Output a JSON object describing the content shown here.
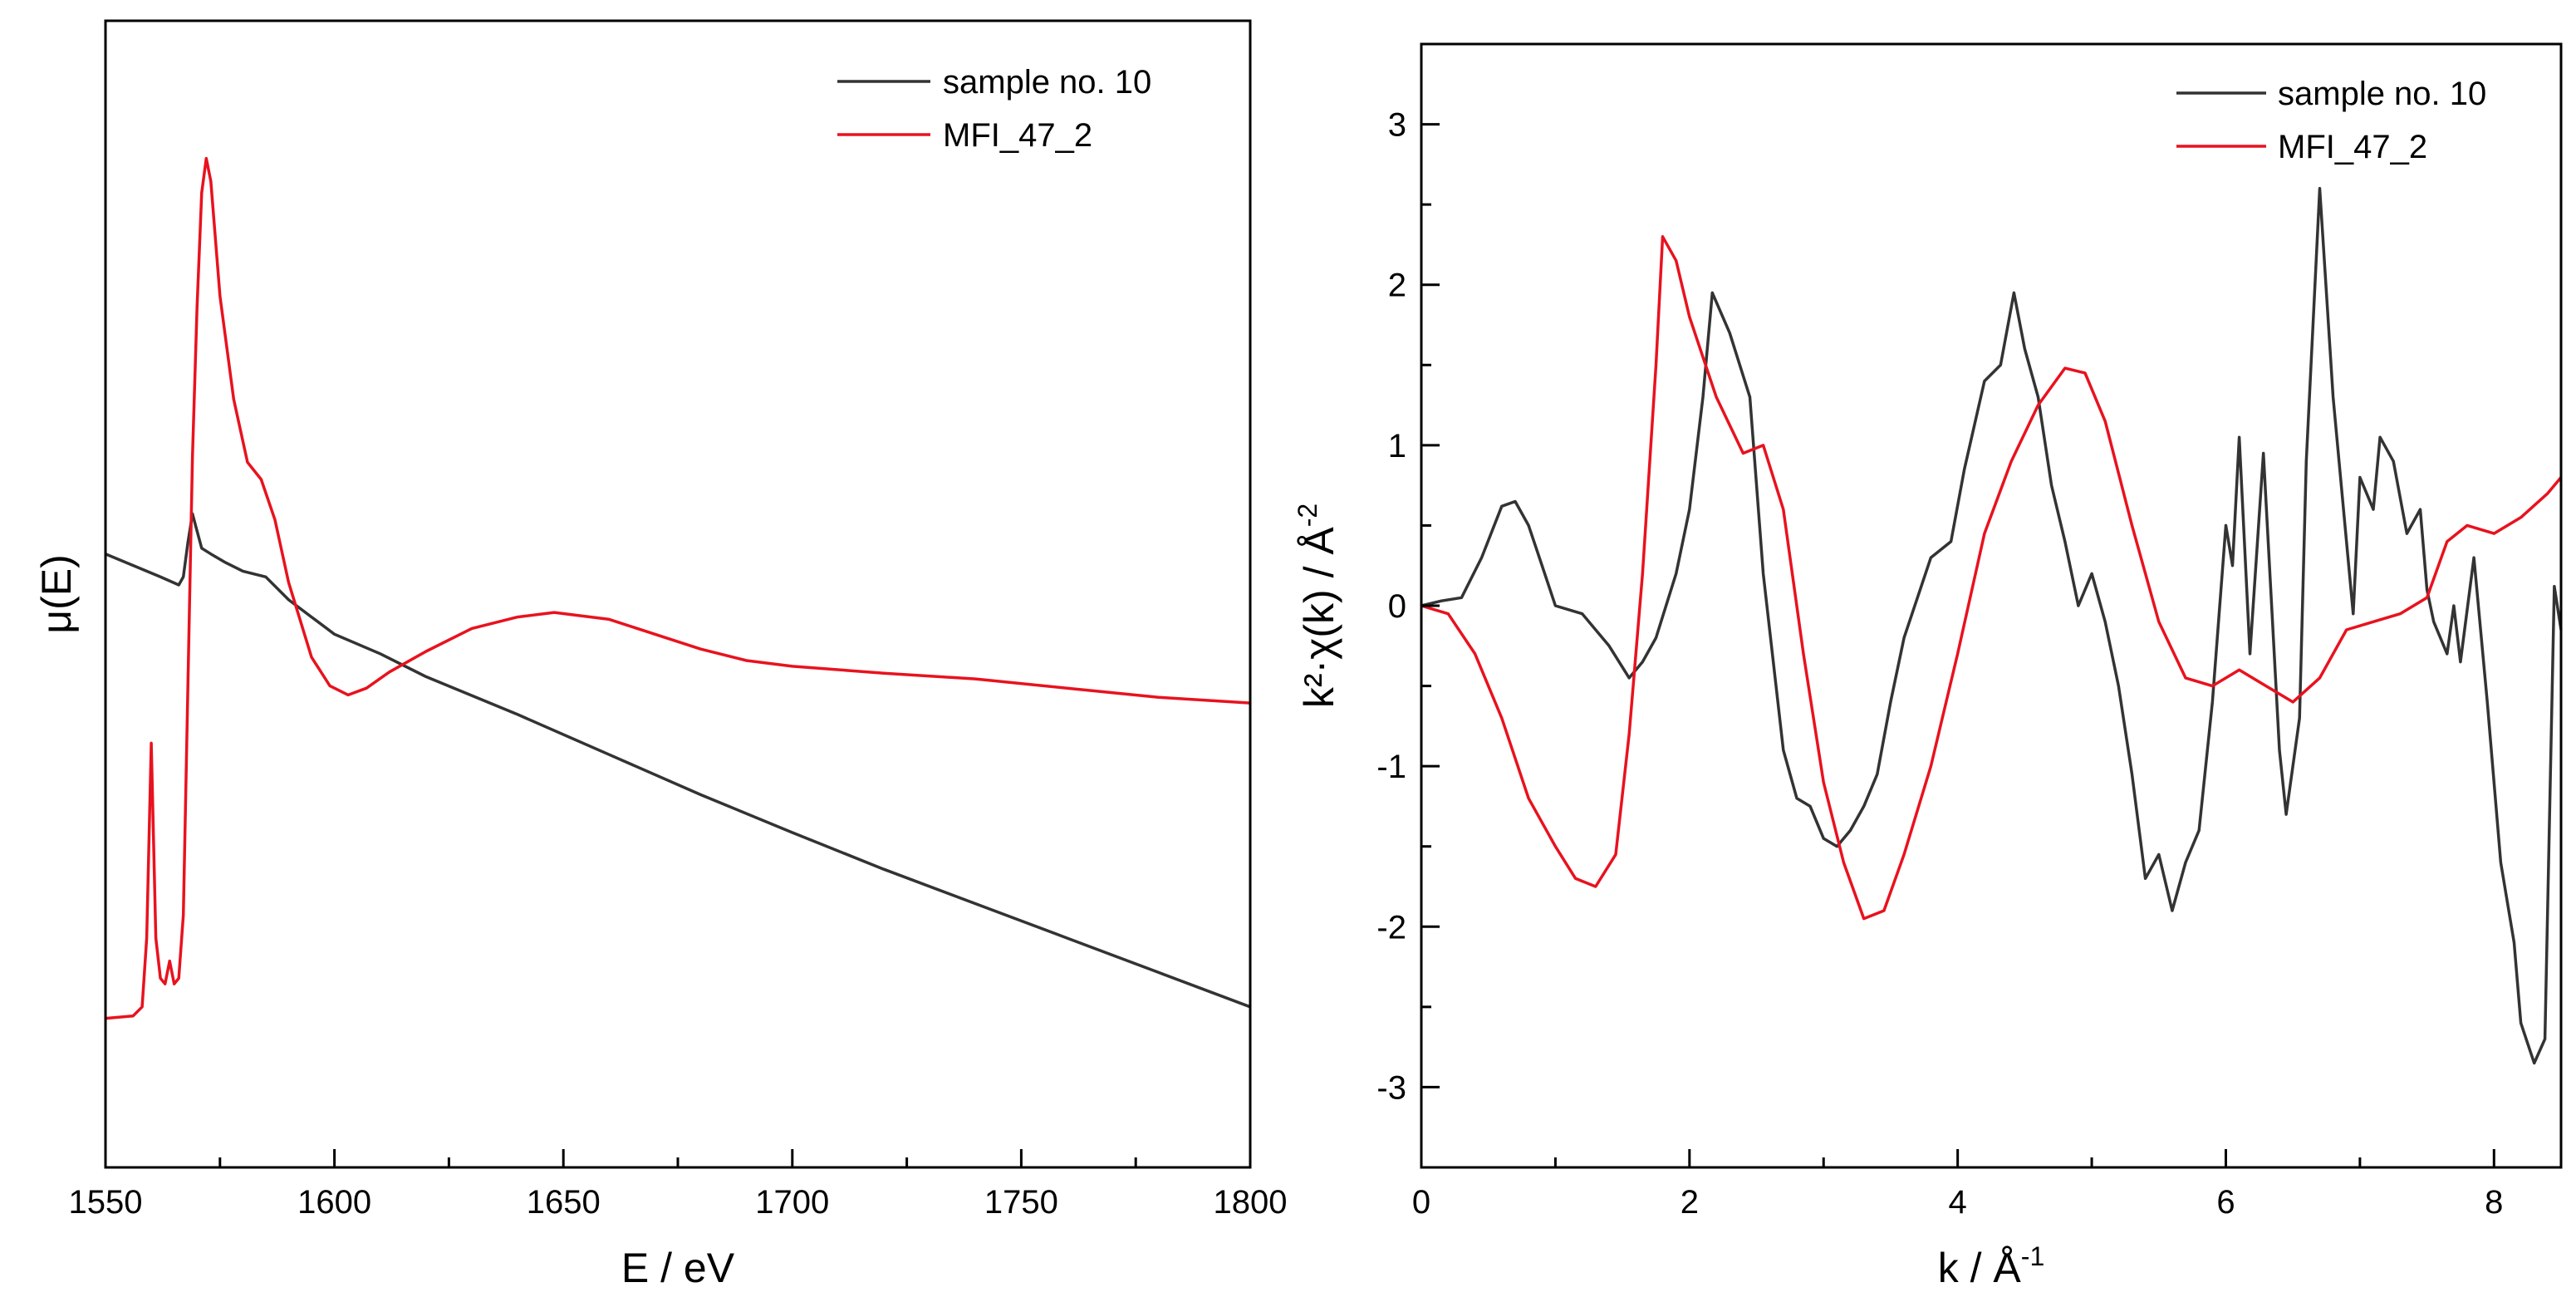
{
  "chart_data": [
    {
      "type": "line",
      "title": "",
      "xlabel": "E / eV",
      "ylabel": "μ(E)",
      "xlim": [
        1550,
        1800
      ],
      "ylim": [
        0,
        1
      ],
      "yticks_shown": false,
      "xticks": [
        1550,
        1600,
        1650,
        1700,
        1750,
        1800
      ],
      "xtick_labels": [
        "1550",
        "1600",
        "1650",
        "1700",
        "1750",
        "1800"
      ],
      "legend_position": "top-right",
      "series": [
        {
          "name": "sample no. 10",
          "color": "#333333",
          "points": [
            [
              1550,
              0.535
            ],
            [
              1556,
              0.525
            ],
            [
              1562,
              0.515
            ],
            [
              1566,
              0.508
            ],
            [
              1567,
              0.515
            ],
            [
              1568,
              0.545
            ],
            [
              1569,
              0.57
            ],
            [
              1570,
              0.555
            ],
            [
              1571,
              0.54
            ],
            [
              1573,
              0.535
            ],
            [
              1576,
              0.528
            ],
            [
              1580,
              0.52
            ],
            [
              1585,
              0.515
            ],
            [
              1590,
              0.495
            ],
            [
              1595,
              0.48
            ],
            [
              1600,
              0.465
            ],
            [
              1610,
              0.448
            ],
            [
              1620,
              0.428
            ],
            [
              1640,
              0.395
            ],
            [
              1660,
              0.36
            ],
            [
              1680,
              0.325
            ],
            [
              1700,
              0.292
            ],
            [
              1720,
              0.26
            ],
            [
              1740,
              0.23
            ],
            [
              1760,
              0.2
            ],
            [
              1780,
              0.17
            ],
            [
              1800,
              0.14
            ]
          ]
        },
        {
          "name": "MFI_47_2",
          "color": "#e8121e",
          "points": [
            [
              1550,
              0.13
            ],
            [
              1556,
              0.132
            ],
            [
              1558,
              0.14
            ],
            [
              1559,
              0.2
            ],
            [
              1560,
              0.37
            ],
            [
              1561,
              0.2
            ],
            [
              1562,
              0.165
            ],
            [
              1563,
              0.16
            ],
            [
              1564,
              0.18
            ],
            [
              1565,
              0.16
            ],
            [
              1566,
              0.165
            ],
            [
              1567,
              0.22
            ],
            [
              1568,
              0.42
            ],
            [
              1569,
              0.62
            ],
            [
              1570,
              0.75
            ],
            [
              1571,
              0.85
            ],
            [
              1572,
              0.88
            ],
            [
              1573,
              0.86
            ],
            [
              1575,
              0.76
            ],
            [
              1578,
              0.67
            ],
            [
              1581,
              0.615
            ],
            [
              1584,
              0.6
            ],
            [
              1587,
              0.565
            ],
            [
              1590,
              0.51
            ],
            [
              1595,
              0.445
            ],
            [
              1599,
              0.42
            ],
            [
              1603,
              0.412
            ],
            [
              1607,
              0.418
            ],
            [
              1612,
              0.432
            ],
            [
              1620,
              0.45
            ],
            [
              1630,
              0.47
            ],
            [
              1640,
              0.48
            ],
            [
              1648,
              0.484
            ],
            [
              1660,
              0.478
            ],
            [
              1670,
              0.465
            ],
            [
              1680,
              0.452
            ],
            [
              1690,
              0.442
            ],
            [
              1700,
              0.437
            ],
            [
              1720,
              0.431
            ],
            [
              1740,
              0.426
            ],
            [
              1760,
              0.418
            ],
            [
              1780,
              0.41
            ],
            [
              1800,
              0.405
            ]
          ]
        }
      ]
    },
    {
      "type": "line",
      "title": "",
      "xlabel": "k / Å",
      "xlabel_sup": "-1",
      "ylabel": "k²·χ(k) / Å",
      "ylabel_sup": "-2",
      "xlim": [
        0,
        8.5
      ],
      "ylim": [
        -3.5,
        3.5
      ],
      "xticks": [
        0,
        2,
        4,
        6,
        8
      ],
      "xtick_labels": [
        "0",
        "2",
        "4",
        "6",
        "8"
      ],
      "yticks": [
        -3,
        -2,
        -1,
        0,
        1,
        2,
        3
      ],
      "ytick_labels": [
        "-3",
        "-2",
        "-1",
        "0",
        "1",
        "2",
        "3"
      ],
      "legend_position": "top-right",
      "series": [
        {
          "name": "sample no. 10",
          "color": "#333333",
          "points": [
            [
              0,
              0
            ],
            [
              0.15,
              0.03
            ],
            [
              0.3,
              0.05
            ],
            [
              0.45,
              0.3
            ],
            [
              0.6,
              0.62
            ],
            [
              0.7,
              0.65
            ],
            [
              0.8,
              0.5
            ],
            [
              0.9,
              0.25
            ],
            [
              1.0,
              0.0
            ],
            [
              1.2,
              -0.05
            ],
            [
              1.4,
              -0.25
            ],
            [
              1.55,
              -0.45
            ],
            [
              1.65,
              -0.35
            ],
            [
              1.75,
              -0.2
            ],
            [
              1.9,
              0.2
            ],
            [
              2.0,
              0.6
            ],
            [
              2.1,
              1.3
            ],
            [
              2.17,
              1.95
            ],
            [
              2.3,
              1.7
            ],
            [
              2.45,
              1.3
            ],
            [
              2.55,
              0.2
            ],
            [
              2.7,
              -0.9
            ],
            [
              2.8,
              -1.2
            ],
            [
              2.9,
              -1.25
            ],
            [
              3.0,
              -1.45
            ],
            [
              3.1,
              -1.5
            ],
            [
              3.2,
              -1.4
            ],
            [
              3.3,
              -1.25
            ],
            [
              3.4,
              -1.05
            ],
            [
              3.5,
              -0.6
            ],
            [
              3.6,
              -0.2
            ],
            [
              3.8,
              0.3
            ],
            [
              3.95,
              0.4
            ],
            [
              4.05,
              0.85
            ],
            [
              4.2,
              1.4
            ],
            [
              4.32,
              1.5
            ],
            [
              4.42,
              1.95
            ],
            [
              4.5,
              1.6
            ],
            [
              4.6,
              1.3
            ],
            [
              4.7,
              0.75
            ],
            [
              4.8,
              0.4
            ],
            [
              4.9,
              0.0
            ],
            [
              5.0,
              0.2
            ],
            [
              5.1,
              -0.1
            ],
            [
              5.2,
              -0.5
            ],
            [
              5.3,
              -1.05
            ],
            [
              5.4,
              -1.7
            ],
            [
              5.5,
              -1.55
            ],
            [
              5.6,
              -1.9
            ],
            [
              5.7,
              -1.6
            ],
            [
              5.8,
              -1.4
            ],
            [
              5.9,
              -0.6
            ],
            [
              6.0,
              0.5
            ],
            [
              6.05,
              0.25
            ],
            [
              6.1,
              1.05
            ],
            [
              6.18,
              -0.3
            ],
            [
              6.28,
              0.95
            ],
            [
              6.4,
              -0.9
            ],
            [
              6.45,
              -1.3
            ],
            [
              6.55,
              -0.7
            ],
            [
              6.6,
              0.9
            ],
            [
              6.7,
              2.6
            ],
            [
              6.8,
              1.3
            ],
            [
              6.9,
              0.4
            ],
            [
              6.95,
              -0.05
            ],
            [
              7.0,
              0.8
            ],
            [
              7.1,
              0.6
            ],
            [
              7.15,
              1.05
            ],
            [
              7.25,
              0.9
            ],
            [
              7.35,
              0.45
            ],
            [
              7.45,
              0.6
            ],
            [
              7.5,
              0.1
            ],
            [
              7.55,
              -0.1
            ],
            [
              7.65,
              -0.3
            ],
            [
              7.7,
              0.0
            ],
            [
              7.75,
              -0.35
            ],
            [
              7.85,
              0.3
            ],
            [
              7.95,
              -0.6
            ],
            [
              8.05,
              -1.6
            ],
            [
              8.15,
              -2.1
            ],
            [
              8.2,
              -2.6
            ],
            [
              8.3,
              -2.85
            ],
            [
              8.38,
              -2.7
            ],
            [
              8.45,
              0.12
            ],
            [
              8.5,
              -0.15
            ]
          ]
        },
        {
          "name": "MFI_47_2",
          "color": "#e8121e",
          "points": [
            [
              0,
              0
            ],
            [
              0.2,
              -0.05
            ],
            [
              0.4,
              -0.3
            ],
            [
              0.6,
              -0.7
            ],
            [
              0.8,
              -1.2
            ],
            [
              1.0,
              -1.5
            ],
            [
              1.15,
              -1.7
            ],
            [
              1.3,
              -1.75
            ],
            [
              1.45,
              -1.55
            ],
            [
              1.55,
              -0.8
            ],
            [
              1.65,
              0.2
            ],
            [
              1.75,
              1.5
            ],
            [
              1.8,
              2.3
            ],
            [
              1.9,
              2.15
            ],
            [
              2.0,
              1.8
            ],
            [
              2.2,
              1.3
            ],
            [
              2.4,
              0.95
            ],
            [
              2.55,
              1.0
            ],
            [
              2.7,
              0.6
            ],
            [
              2.85,
              -0.3
            ],
            [
              3.0,
              -1.1
            ],
            [
              3.15,
              -1.6
            ],
            [
              3.3,
              -1.95
            ],
            [
              3.45,
              -1.9
            ],
            [
              3.6,
              -1.55
            ],
            [
              3.8,
              -1.0
            ],
            [
              4.0,
              -0.3
            ],
            [
              4.2,
              0.45
            ],
            [
              4.4,
              0.9
            ],
            [
              4.6,
              1.25
            ],
            [
              4.8,
              1.48
            ],
            [
              4.95,
              1.45
            ],
            [
              5.1,
              1.15
            ],
            [
              5.3,
              0.5
            ],
            [
              5.5,
              -0.1
            ],
            [
              5.7,
              -0.45
            ],
            [
              5.9,
              -0.5
            ],
            [
              6.1,
              -0.4
            ],
            [
              6.3,
              -0.5
            ],
            [
              6.5,
              -0.6
            ],
            [
              6.7,
              -0.45
            ],
            [
              6.9,
              -0.15
            ],
            [
              7.1,
              -0.1
            ],
            [
              7.3,
              -0.05
            ],
            [
              7.5,
              0.05
            ],
            [
              7.65,
              0.4
            ],
            [
              7.8,
              0.5
            ],
            [
              8.0,
              0.45
            ],
            [
              8.2,
              0.55
            ],
            [
              8.4,
              0.7
            ],
            [
              8.5,
              0.8
            ]
          ]
        }
      ]
    }
  ]
}
